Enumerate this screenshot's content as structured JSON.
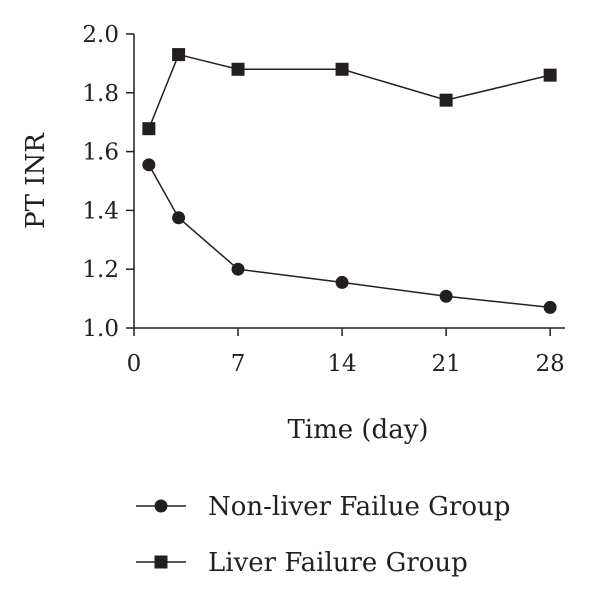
{
  "chart_data": {
    "type": "line",
    "xlabel": "Time (day)",
    "ylabel": "PT INR",
    "xlim": [
      0,
      29
    ],
    "ylim": [
      1.0,
      2.0
    ],
    "xticks": [
      "0",
      "7",
      "14",
      "21",
      "28"
    ],
    "yticks": [
      "1.0",
      "1.2",
      "1.4",
      "1.6",
      "1.8",
      "2.0"
    ],
    "x": [
      1,
      3,
      7,
      14,
      21,
      28
    ],
    "series": [
      {
        "name": "Non-liver Failue Group",
        "marker": "circle",
        "values": [
          1.555,
          1.375,
          1.2,
          1.155,
          1.108,
          1.07
        ]
      },
      {
        "name": "Liver Failure Group",
        "marker": "square",
        "values": [
          1.678,
          1.93,
          1.88,
          1.88,
          1.775,
          1.86
        ]
      }
    ],
    "grid": false,
    "legend": "bottom",
    "colors": {
      "line": "#231f20",
      "marker": "#231f20"
    }
  }
}
